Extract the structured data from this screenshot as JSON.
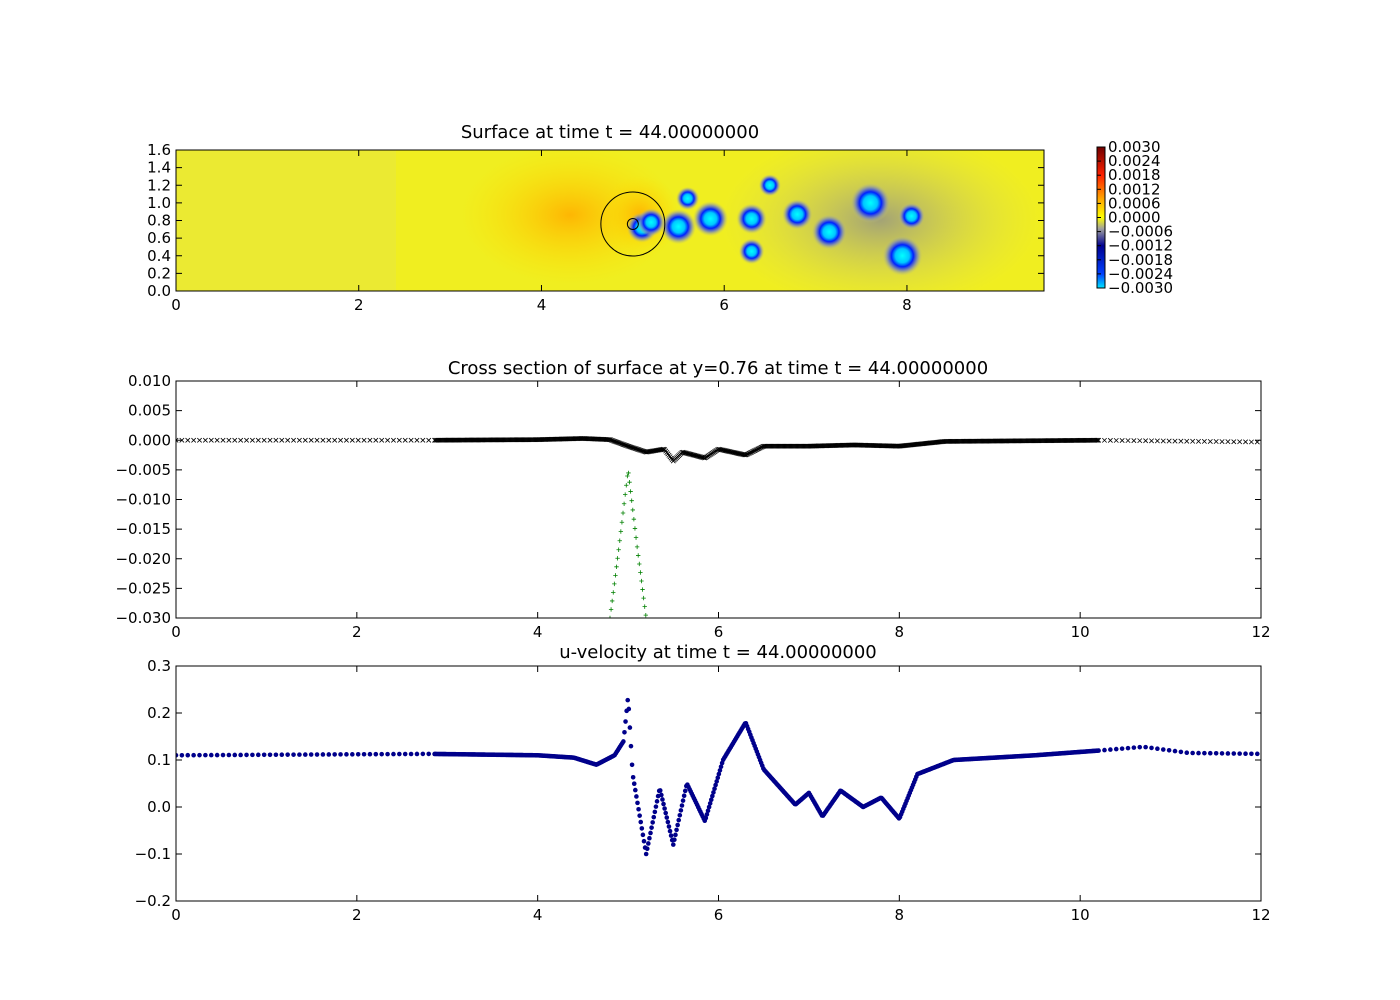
{
  "chart_data": [
    {
      "type": "heatmap",
      "title": "Surface at time t =    44.00000000",
      "xlim": [
        0,
        9.5
      ],
      "ylim": [
        0,
        1.6
      ],
      "xticks": [
        "0",
        "2",
        "4",
        "6",
        "8"
      ],
      "yticks": [
        "0.0",
        "0.2",
        "0.4",
        "0.6",
        "0.8",
        "1.0",
        "1.2",
        "1.4",
        "1.6"
      ],
      "colorbar": {
        "range": [
          -0.003,
          0.003
        ],
        "ticks": [
          "0.0030",
          "0.0024",
          "0.0018",
          "0.0012",
          "0.0006",
          "0.0000",
          "−0.0006",
          "−0.0012",
          "−0.0018",
          "−0.0024",
          "−0.0030"
        ]
      },
      "grid": false,
      "annotations": [
        {
          "shape": "circle",
          "center": [
            5.0,
            0.76
          ],
          "radius_data": 0.35
        },
        {
          "shape": "circle",
          "center": [
            5.0,
            0.76
          ],
          "radius_data": 0.06
        }
      ],
      "vortices": [
        {
          "x": 5.1,
          "y": 0.72,
          "strength": 0.6
        },
        {
          "x": 5.2,
          "y": 0.78,
          "strength": 0.5
        },
        {
          "x": 5.5,
          "y": 0.73,
          "strength": 0.8
        },
        {
          "x": 5.6,
          "y": 1.05,
          "strength": 0.3
        },
        {
          "x": 5.85,
          "y": 0.82,
          "strength": 0.8
        },
        {
          "x": 6.3,
          "y": 0.82,
          "strength": 0.6
        },
        {
          "x": 6.3,
          "y": 0.45,
          "strength": 0.4
        },
        {
          "x": 6.5,
          "y": 1.2,
          "strength": 0.25
        },
        {
          "x": 6.8,
          "y": 0.87,
          "strength": 0.6
        },
        {
          "x": 7.15,
          "y": 0.67,
          "strength": 0.8
        },
        {
          "x": 7.6,
          "y": 1.0,
          "strength": 1.0
        },
        {
          "x": 8.05,
          "y": 0.85,
          "strength": 0.45
        },
        {
          "x": 7.95,
          "y": 0.4,
          "strength": 1.0
        }
      ]
    },
    {
      "type": "scatter",
      "title": "Cross section of surface at y=0.76 at time t =    44.00000000",
      "xlim": [
        0,
        12
      ],
      "ylim": [
        -0.03,
        0.01
      ],
      "xticks": [
        "0",
        "2",
        "4",
        "6",
        "8",
        "10",
        "12"
      ],
      "yticks": [
        "0.010",
        "0.005",
        "0.000",
        "−0.005",
        "−0.010",
        "−0.015",
        "−0.020",
        "−0.025",
        "−0.030"
      ],
      "grid": false,
      "series": [
        {
          "marker": "x",
          "color": "#000000",
          "description_points": [
            [
              0,
              0.0
            ],
            [
              2.8,
              0.0
            ],
            [
              4.0,
              0.0001
            ],
            [
              4.5,
              0.0003
            ],
            [
              4.8,
              0.0001
            ],
            [
              5.0,
              -0.001
            ],
            [
              5.2,
              -0.002
            ],
            [
              5.4,
              -0.0015
            ],
            [
              5.5,
              -0.0035
            ],
            [
              5.6,
              -0.002
            ],
            [
              5.85,
              -0.003
            ],
            [
              6.0,
              -0.0015
            ],
            [
              6.3,
              -0.0025
            ],
            [
              6.5,
              -0.001
            ],
            [
              7.0,
              -0.001
            ],
            [
              7.5,
              -0.0008
            ],
            [
              8.0,
              -0.001
            ],
            [
              8.5,
              -0.0002
            ],
            [
              10.2,
              0.0
            ],
            [
              12,
              -0.0003
            ]
          ]
        },
        {
          "marker": "+",
          "color": "#008000",
          "description_points": [
            [
              4.8,
              -0.03
            ],
            [
              4.9,
              -0.018
            ],
            [
              5.0,
              -0.005
            ],
            [
              5.1,
              -0.018
            ],
            [
              5.2,
              -0.03
            ]
          ]
        }
      ]
    },
    {
      "type": "scatter",
      "title": "u-velocity at time t =    44.00000000",
      "xlim": [
        0,
        12
      ],
      "ylim": [
        -0.2,
        0.3
      ],
      "xticks": [
        "0",
        "2",
        "4",
        "6",
        "8",
        "10",
        "12"
      ],
      "yticks": [
        "0.3",
        "0.2",
        "0.1",
        "0.0",
        "−0.1",
        "−0.2"
      ],
      "grid": false,
      "series": [
        {
          "marker": "o",
          "color": "#00008b",
          "description_points": [
            [
              0,
              0.11
            ],
            [
              2.8,
              0.113
            ],
            [
              4.0,
              0.11
            ],
            [
              4.4,
              0.105
            ],
            [
              4.65,
              0.09
            ],
            [
              4.85,
              0.11
            ],
            [
              4.95,
              0.14
            ],
            [
              5.0,
              0.235
            ],
            [
              5.05,
              0.07
            ],
            [
              5.2,
              -0.1
            ],
            [
              5.35,
              0.04
            ],
            [
              5.5,
              -0.08
            ],
            [
              5.65,
              0.05
            ],
            [
              5.85,
              -0.03
            ],
            [
              6.05,
              0.1
            ],
            [
              6.3,
              0.18
            ],
            [
              6.5,
              0.08
            ],
            [
              6.85,
              0.005
            ],
            [
              7.0,
              0.03
            ],
            [
              7.15,
              -0.02
            ],
            [
              7.35,
              0.035
            ],
            [
              7.6,
              0.0
            ],
            [
              7.8,
              0.02
            ],
            [
              8.0,
              -0.025
            ],
            [
              8.2,
              0.07
            ],
            [
              8.6,
              0.1
            ],
            [
              9.5,
              0.11
            ],
            [
              10.2,
              0.12
            ],
            [
              10.7,
              0.128
            ],
            [
              11.2,
              0.115
            ],
            [
              12,
              0.113
            ]
          ]
        }
      ]
    }
  ]
}
